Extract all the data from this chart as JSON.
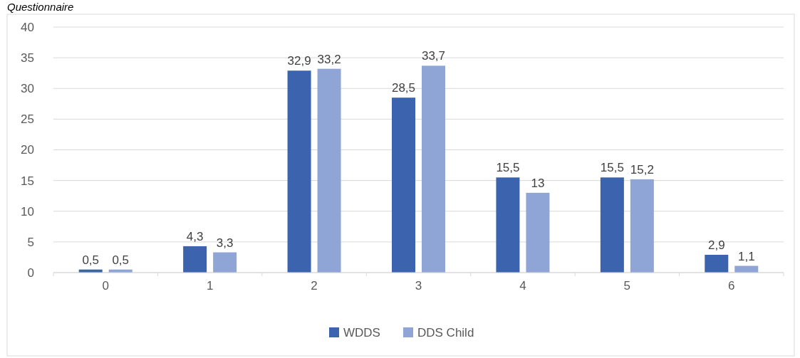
{
  "chart_data": {
    "type": "bar",
    "title": "Questionnaire",
    "categories": [
      "0",
      "1",
      "2",
      "3",
      "4",
      "5",
      "6"
    ],
    "series": [
      {
        "name": "WDDS",
        "color": "#3c64ae",
        "values": [
          0.5,
          4.3,
          32.9,
          28.5,
          15.5,
          15.5,
          2.9
        ],
        "value_labels": [
          "0,5",
          "4,3",
          "32,9",
          "28,5",
          "15,5",
          "15,5",
          "2,9"
        ]
      },
      {
        "name": "DDS Child",
        "color": "#8fa5d6",
        "values": [
          0.5,
          3.3,
          33.2,
          33.7,
          13,
          15.2,
          1.1
        ],
        "value_labels": [
          "0,5",
          "3,3",
          "33,2",
          "33,7",
          "13",
          "15,2",
          "1,1"
        ]
      }
    ],
    "ylim": [
      0,
      40
    ],
    "yticks": [
      0,
      5,
      10,
      15,
      20,
      25,
      30,
      35,
      40
    ],
    "grid": "y",
    "legend": "bottom"
  }
}
